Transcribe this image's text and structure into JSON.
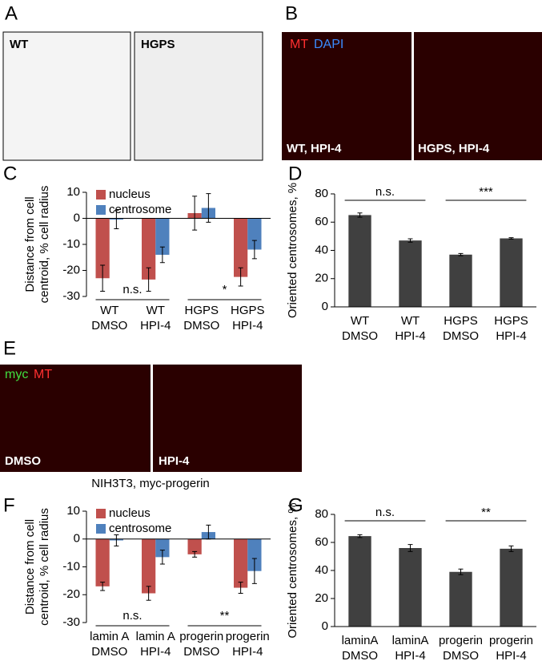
{
  "panel_labels": [
    "A",
    "B",
    "C",
    "D",
    "E",
    "F",
    "G"
  ],
  "images": {
    "a_left": "WT",
    "a_right": "HGPS",
    "b_stain": [
      "MT",
      "DAPI"
    ],
    "b_left": "WT, HPI-4",
    "b_right": "HGPS, HPI-4",
    "e_stain": [
      "myc",
      "MT"
    ],
    "e_left": "DMSO",
    "e_right": "HPI-4",
    "e_caption": "NIH3T3, myc-progerin"
  },
  "chart_data": [
    {
      "type": "bar",
      "ylabel": [
        "Distance  from cell",
        "centroid, % cell radius"
      ],
      "categories": [
        [
          "WT",
          "DMSO"
        ],
        [
          "WT",
          "HPI-4"
        ],
        [
          "HGPS",
          "DMSO"
        ],
        [
          "HGPS",
          "HPI-4"
        ]
      ],
      "series": [
        {
          "name": "nucleus",
          "color": "#c0504d",
          "values": [
            -23,
            -23.5,
            2,
            -22.5
          ],
          "errors": [
            5,
            4.5,
            6.5,
            3.5
          ]
        },
        {
          "name": "centrosome",
          "color": "#4f81bd",
          "values": [
            -0.5,
            -14,
            4,
            -12
          ],
          "errors": [
            3.5,
            3,
            5.5,
            3.5
          ]
        }
      ],
      "ylim": [
        -30,
        10
      ],
      "yticks": [
        -30,
        -20,
        -10,
        0,
        10
      ],
      "annotations": [
        "n.s.",
        "*"
      ]
    },
    {
      "type": "bar",
      "ylabel": [
        "Oriented centrosomes, %"
      ],
      "categories": [
        [
          "WT",
          "DMSO"
        ],
        [
          "WT",
          "HPI-4"
        ],
        [
          "HGPS",
          "DMSO"
        ],
        [
          "HGPS",
          "HPI-4"
        ]
      ],
      "series": [
        {
          "color": "#404040",
          "values": [
            65,
            47,
            37,
            48.5
          ],
          "errors": [
            1.5,
            1.2,
            0.8,
            0.5
          ]
        }
      ],
      "ylim": [
        0,
        80
      ],
      "yticks": [
        0,
        20,
        40,
        60,
        80
      ],
      "annotations": [
        "n.s.",
        "***"
      ]
    },
    {
      "type": "bar",
      "ylabel": [
        "Distance  from cell",
        "centroid, % cell radius"
      ],
      "categories": [
        [
          "lamin A",
          "DMSO"
        ],
        [
          "lamin A",
          "HPI-4"
        ],
        [
          "progerin",
          "DMSO"
        ],
        [
          "progerin",
          "HPI-4"
        ]
      ],
      "series": [
        {
          "name": "nucleus",
          "color": "#c0504d",
          "values": [
            -17,
            -19.5,
            -5.5,
            -17.5
          ],
          "errors": [
            1.5,
            2.5,
            1,
            2
          ]
        },
        {
          "name": "centrosome",
          "color": "#4f81bd",
          "values": [
            -0.5,
            -6.5,
            2.5,
            -11.5
          ],
          "errors": [
            2,
            2.5,
            2.5,
            4.5
          ]
        }
      ],
      "ylim": [
        -30,
        10
      ],
      "yticks": [
        -30,
        -20,
        -10,
        0,
        10
      ],
      "annotations": [
        "n.s.",
        "**"
      ]
    },
    {
      "type": "bar",
      "ylabel": [
        "Oriented centrosomes, %"
      ],
      "categories": [
        [
          "laminA",
          "DMSO"
        ],
        [
          "laminA",
          "HPI-4"
        ],
        [
          "progerin",
          "DMSO"
        ],
        [
          "progerin",
          "HPI-4"
        ]
      ],
      "series": [
        {
          "color": "#404040",
          "values": [
            64.5,
            56,
            39,
            55.5
          ],
          "errors": [
            1,
            2.5,
            2,
            2
          ]
        }
      ],
      "ylim": [
        0,
        80
      ],
      "yticks": [
        0,
        20,
        40,
        60,
        80
      ],
      "annotations": [
        "n.s.",
        "**"
      ]
    }
  ]
}
